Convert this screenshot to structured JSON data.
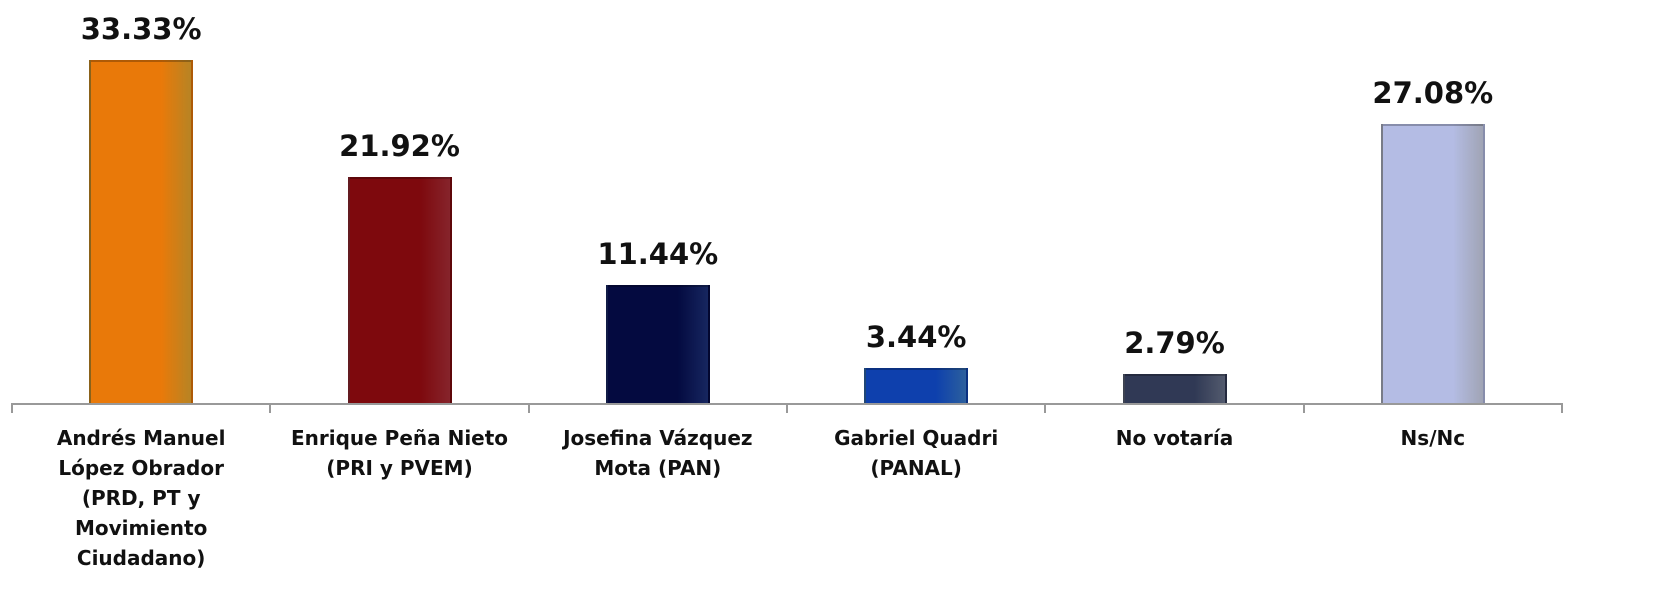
{
  "chart_data": {
    "type": "bar",
    "categories": [
      "Andrés Manuel López Obrador (PRD, PT y Movimiento Ciudadano)",
      "Enrique Peña Nieto (PRI y PVEM)",
      "Josefina Vázquez Mota (PAN)",
      "Gabriel Quadri (PANAL)",
      "No votaría",
      "Ns/Nc"
    ],
    "values": [
      33.33,
      21.92,
      11.44,
      3.44,
      2.79,
      27.08
    ],
    "value_labels": [
      "33.33%",
      "21.92%",
      "11.44%",
      "3.44%",
      "2.79%",
      "27.08%"
    ],
    "colors": [
      "#f4b030",
      "#b3303a",
      "#1e3380",
      "#3b80d2",
      "#6f7993",
      "#d6dbf1"
    ]
  }
}
